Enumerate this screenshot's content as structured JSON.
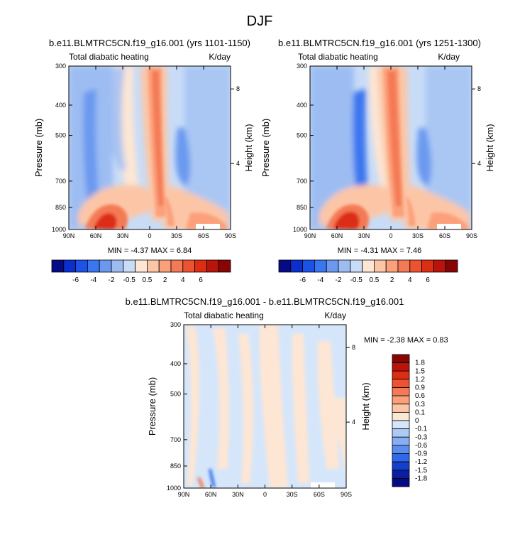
{
  "figure_title": "DJF",
  "colors": {
    "scale_12": [
      "#050a85",
      "#0b2fcc",
      "#1c52e8",
      "#3a76ef",
      "#6b99f0",
      "#9dbdf2",
      "#c8dcf7",
      "#fde6d4",
      "#fcc6a6",
      "#fba07a",
      "#f47a55",
      "#ee5230",
      "#dc2d15",
      "#b8140c",
      "#870605"
    ],
    "diff_scale": [
      "#870605",
      "#b8140c",
      "#dc2d15",
      "#ee5230",
      "#f47a55",
      "#fba07a",
      "#fcc6a6",
      "#fde6d4",
      "#d6e6fa",
      "#adc9f5",
      "#86aef1",
      "#5b8def",
      "#2f68ea",
      "#1340cc",
      "#0a1ea3",
      "#050a85"
    ]
  },
  "chart_data": [
    {
      "type": "heatmap",
      "panel": "top-left",
      "title": "b.e11.BLMTRC5CN.f19_g16.001 (yrs 1101-1150)",
      "subtitle_left": "Total diabatic heating",
      "subtitle_right": "K/day",
      "ylabel": "Pressure (mb)",
      "ylabel_right": "Height (km)",
      "x_ticks": [
        "90N",
        "60N",
        "30N",
        "0",
        "30S",
        "60S",
        "90S"
      ],
      "y_ticks": [
        {
          "p": 300,
          "label": "300"
        },
        {
          "p": 400,
          "label": "400"
        },
        {
          "p": 500,
          "label": "500"
        },
        {
          "p": 700,
          "label": "700"
        },
        {
          "p": 850,
          "label": "850"
        },
        {
          "p": 1000,
          "label": "1000"
        }
      ],
      "y_ticks_right": [
        {
          "p": 355,
          "label": "8"
        },
        {
          "p": 615,
          "label": "4"
        }
      ],
      "ylim": [
        300,
        1000
      ],
      "xlim": [
        90,
        -90
      ],
      "stats_text": "MIN =  -4.37   MAX =   6.84",
      "min": -4.37,
      "max": 6.84,
      "colorbar_labels": [
        "-6",
        "-4",
        "-2",
        "-0.5",
        "0.5",
        "2",
        "4",
        "6"
      ]
    },
    {
      "type": "heatmap",
      "panel": "top-right",
      "title": "b.e11.BLMTRC5CN.f19_g16.001 (yrs 1251-1300)",
      "subtitle_left": "Total diabatic heating",
      "subtitle_right": "K/day",
      "ylabel": "Pressure (mb)",
      "ylabel_right": "Height (km)",
      "x_ticks": [
        "90N",
        "60N",
        "30N",
        "0",
        "30S",
        "60S",
        "90S"
      ],
      "y_ticks": [
        {
          "p": 300,
          "label": "300"
        },
        {
          "p": 400,
          "label": "400"
        },
        {
          "p": 500,
          "label": "500"
        },
        {
          "p": 700,
          "label": "700"
        },
        {
          "p": 850,
          "label": "850"
        },
        {
          "p": 1000,
          "label": "1000"
        }
      ],
      "y_ticks_right": [
        {
          "p": 355,
          "label": "8"
        },
        {
          "p": 615,
          "label": "4"
        }
      ],
      "ylim": [
        300,
        1000
      ],
      "xlim": [
        90,
        -90
      ],
      "stats_text": "MIN =  -4.31   MAX =   7.46",
      "min": -4.31,
      "max": 7.46,
      "colorbar_labels": [
        "-6",
        "-4",
        "-2",
        "-0.5",
        "0.5",
        "2",
        "4",
        "6"
      ]
    },
    {
      "type": "heatmap",
      "panel": "bottom",
      "title": "b.e11.BLMTRC5CN.f19_g16.001 - b.e11.BLMTRC5CN.f19_g16.001",
      "subtitle_left": "Total diabatic heating",
      "subtitle_right": "K/day",
      "ylabel": "Pressure (mb)",
      "ylabel_right": "Height (km)",
      "x_ticks": [
        "90N",
        "60N",
        "30N",
        "0",
        "30S",
        "60S",
        "90S"
      ],
      "y_ticks": [
        {
          "p": 300,
          "label": "300"
        },
        {
          "p": 400,
          "label": "400"
        },
        {
          "p": 500,
          "label": "500"
        },
        {
          "p": 700,
          "label": "700"
        },
        {
          "p": 850,
          "label": "850"
        },
        {
          "p": 1000,
          "label": "1000"
        }
      ],
      "y_ticks_right": [
        {
          "p": 355,
          "label": "8"
        },
        {
          "p": 615,
          "label": "4"
        }
      ],
      "ylim": [
        300,
        1000
      ],
      "xlim": [
        90,
        -90
      ],
      "stats_text": "MIN =  -2.38   MAX =   0.83",
      "min": -2.38,
      "max": 0.83,
      "colorbar_labels": [
        "1.8",
        "1.5",
        "1.2",
        "0.9",
        "0.6",
        "0.3",
        "0.1",
        "0",
        "-0.1",
        "-0.3",
        "-0.6",
        "-0.9",
        "-1.2",
        "-1.5",
        "-1.8"
      ]
    }
  ]
}
